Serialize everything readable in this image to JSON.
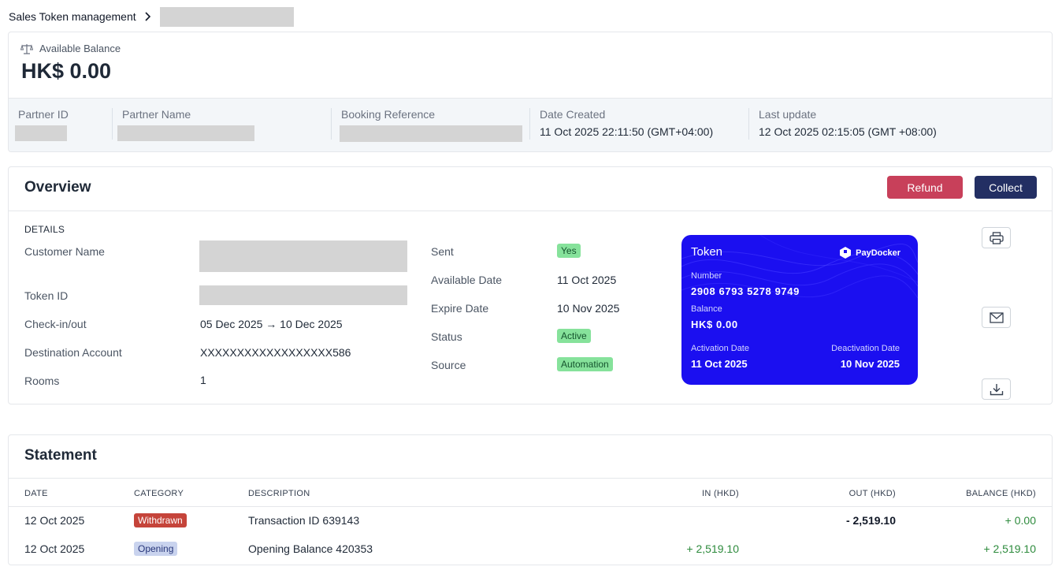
{
  "breadcrumb": {
    "root": "Sales Token management"
  },
  "balance": {
    "label": "Available Balance",
    "value": "HK$ 0.00",
    "meta": {
      "partner_id_label": "Partner ID",
      "partner_name_label": "Partner Name",
      "booking_ref_label": "Booking Reference",
      "date_created_label": "Date Created",
      "date_created_value": "11 Oct 2025 22:11:50 (GMT+04:00)",
      "last_update_label": "Last update",
      "last_update_value": "12 Oct 2025 02:15:05 (GMT +08:00)"
    }
  },
  "overview": {
    "title": "Overview",
    "refund_label": "Refund",
    "collect_label": "Collect",
    "details_heading": "DETAILS",
    "customer_name_label": "Customer Name",
    "token_id_label": "Token ID",
    "checkin_label": "Check-in/out",
    "checkin_value": "05 Dec 2025 → 10 Dec 2025",
    "destination_label": "Destination Account",
    "destination_value": "XXXXXXXXXXXXXXXXXX586",
    "rooms_label": "Rooms",
    "rooms_value": "1",
    "sent_label": "Sent",
    "sent_value": "Yes",
    "available_date_label": "Available Date",
    "available_date_value": "11 Oct 2025",
    "expire_date_label": "Expire Date",
    "expire_date_value": "10 Nov 2025",
    "status_label": "Status",
    "status_value": "Active",
    "source_label": "Source",
    "source_value": "Automation"
  },
  "token_card": {
    "title": "Token",
    "brand": "PayDocker",
    "number_label": "Number",
    "number_value": "2908 6793 5278 9749",
    "balance_label": "Balance",
    "balance_value": "HK$ 0.00",
    "activation_label": "Activation Date",
    "activation_value": "11 Oct 2025",
    "deactivation_label": "Deactivation Date",
    "deactivation_value": "10 Nov 2025",
    "card_color": "#1b0ff0"
  },
  "actions": {
    "icons": [
      "printer-icon",
      "mail-icon",
      "download-icon"
    ]
  },
  "statement": {
    "title": "Statement",
    "columns": [
      "DATE",
      "CATEGORY",
      "DESCRIPTION",
      "IN (HKD)",
      "OUT (HKD)",
      "BALANCE (HKD)"
    ],
    "rows": [
      {
        "date": "12 Oct 2025",
        "category": "Withdrawn",
        "description": "Transaction ID 639143",
        "in": "",
        "out": "- 2,519.10",
        "balance": "+ 0.00"
      },
      {
        "date": "12 Oct 2025",
        "category": "Opening",
        "description": "Opening Balance 420353",
        "in": "+ 2,519.10",
        "out": "",
        "balance": "+ 2,519.10"
      }
    ]
  },
  "colors": {
    "refund": "#c8405a",
    "collect": "#232f63",
    "positive": "#2e8b3d",
    "active_badge": "#86e29b"
  }
}
